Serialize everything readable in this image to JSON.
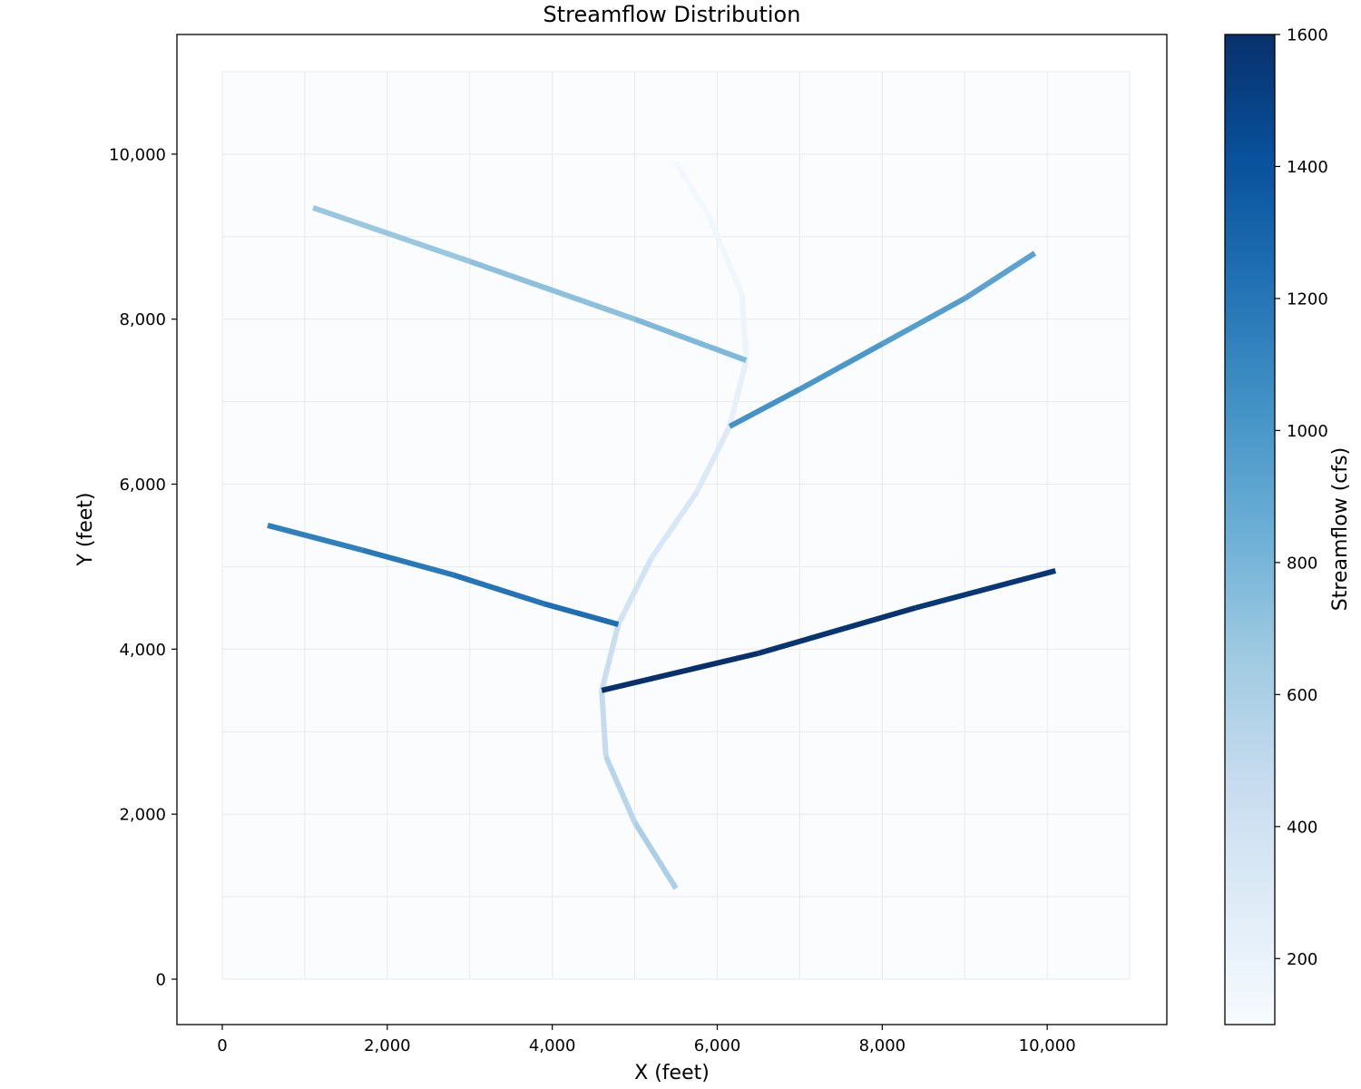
{
  "chart_data": {
    "type": "line",
    "title": "Streamflow Distribution",
    "xlabel": "X (feet)",
    "ylabel": "Y (feet)",
    "xlim": [
      -550,
      11450
    ],
    "ylim": [
      -550,
      11450
    ],
    "x_ticks": [
      0,
      2000,
      4000,
      6000,
      8000,
      10000
    ],
    "x_tick_labels": [
      "0",
      "2,000",
      "4,000",
      "6,000",
      "8,000",
      "10,000"
    ],
    "y_ticks": [
      0,
      2000,
      4000,
      6000,
      8000,
      10000
    ],
    "y_tick_labels": [
      "0",
      "2,000",
      "4,000",
      "6,000",
      "8,000",
      "10,000"
    ],
    "grid": true,
    "grid_extent": [
      0,
      11000
    ],
    "grid_step": 1000,
    "colorbar": {
      "label": "Streamflow (cfs)",
      "colormap": "Blues",
      "min": 100,
      "max": 1600,
      "ticks": [
        200,
        400,
        600,
        800,
        1000,
        1200,
        1400,
        1600
      ],
      "tick_labels": [
        "200",
        "400",
        "600",
        "800",
        "1000",
        "1200",
        "1400",
        "1600"
      ],
      "colors": [
        "#f7fbff",
        "#deebf7",
        "#c6dbef",
        "#9ecae1",
        "#6baed6",
        "#4292c6",
        "#2171b5",
        "#08519c",
        "#08306b"
      ]
    },
    "segments": [
      {
        "points": [
          [
            5500,
            9900
          ],
          [
            5900,
            9250
          ],
          [
            6000,
            9000
          ],
          [
            6300,
            8300
          ],
          [
            6350,
            7500
          ],
          [
            6150,
            6700
          ],
          [
            5750,
            5900
          ],
          [
            5200,
            5100
          ],
          [
            4800,
            4300
          ],
          [
            4600,
            3500
          ],
          [
            4650,
            2700
          ],
          [
            5000,
            1900
          ],
          [
            5500,
            1100
          ]
        ],
        "flow": [
          130,
          150,
          160,
          180,
          230,
          300,
          340,
          380,
          440,
          480,
          540,
          600
        ]
      },
      {
        "points": [
          [
            1100,
            9350
          ],
          [
            3000,
            8700
          ],
          [
            5000,
            8000
          ],
          [
            6350,
            7500
          ]
        ],
        "flow": [
          680,
          730,
          780
        ]
      },
      {
        "points": [
          [
            6150,
            6700
          ],
          [
            7000,
            7150
          ],
          [
            8000,
            7700
          ],
          [
            9000,
            8250
          ],
          [
            9850,
            8800
          ]
        ],
        "flow": [
          1030,
          1000,
          960,
          930
        ]
      },
      {
        "points": [
          [
            550,
            5500
          ],
          [
            1700,
            5200
          ],
          [
            2800,
            4900
          ],
          [
            3900,
            4550
          ],
          [
            4800,
            4300
          ]
        ],
        "flow": [
          1140,
          1180,
          1210,
          1240
        ]
      },
      {
        "points": [
          [
            4600,
            3500
          ],
          [
            6500,
            3950
          ],
          [
            8400,
            4500
          ],
          [
            10100,
            4950
          ]
        ],
        "flow": [
          1600,
          1580,
          1560
        ]
      }
    ]
  }
}
